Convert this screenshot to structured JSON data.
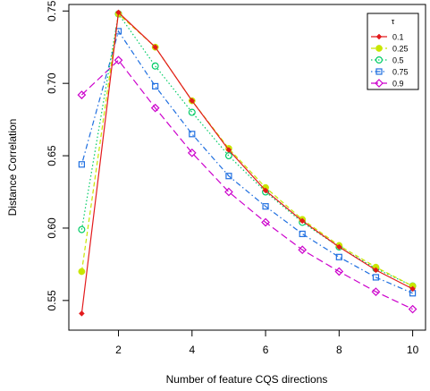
{
  "chart_data": {
    "type": "line",
    "title": "",
    "xlabel": "Number of feature CQS directions",
    "ylabel": "Distance Correlation",
    "xlim": [
      0.65,
      10.35
    ],
    "ylim": [
      0.5295,
      0.7545
    ],
    "xticks": [
      2,
      4,
      6,
      8,
      10
    ],
    "yticks": [
      0.55,
      0.6,
      0.65,
      0.7,
      0.75
    ],
    "grid": false,
    "legend": {
      "title": "τ",
      "position": "top-right"
    },
    "x": [
      1,
      2,
      3,
      4,
      5,
      6,
      7,
      8,
      9,
      10
    ],
    "series": [
      {
        "name": "0.1",
        "color": "#e31a1c",
        "marker": "filled-diamond",
        "line": "solid",
        "values": [
          0.541,
          0.749,
          0.725,
          0.688,
          0.654,
          0.626,
          0.605,
          0.587,
          0.571,
          0.558
        ]
      },
      {
        "name": "0.25",
        "color": "#c8e600",
        "marker": "filled-circle",
        "line": "dashed",
        "values": [
          0.57,
          0.748,
          0.725,
          0.688,
          0.655,
          0.628,
          0.606,
          0.588,
          0.573,
          0.56
        ]
      },
      {
        "name": "0.5",
        "color": "#00cc66",
        "marker": "open-circle",
        "line": "dotted",
        "values": [
          0.599,
          0.748,
          0.712,
          0.68,
          0.65,
          0.625,
          0.604,
          0.587,
          0.572,
          0.56
        ]
      },
      {
        "name": "0.75",
        "color": "#1f6fe0",
        "marker": "open-square",
        "line": "dotdash",
        "values": [
          0.644,
          0.736,
          0.698,
          0.665,
          0.636,
          0.615,
          0.596,
          0.58,
          0.566,
          0.555
        ]
      },
      {
        "name": "0.9",
        "color": "#cc00cc",
        "marker": "open-diamond",
        "line": "longdash",
        "values": [
          0.692,
          0.716,
          0.683,
          0.652,
          0.625,
          0.604,
          0.585,
          0.57,
          0.556,
          0.544
        ]
      }
    ]
  }
}
